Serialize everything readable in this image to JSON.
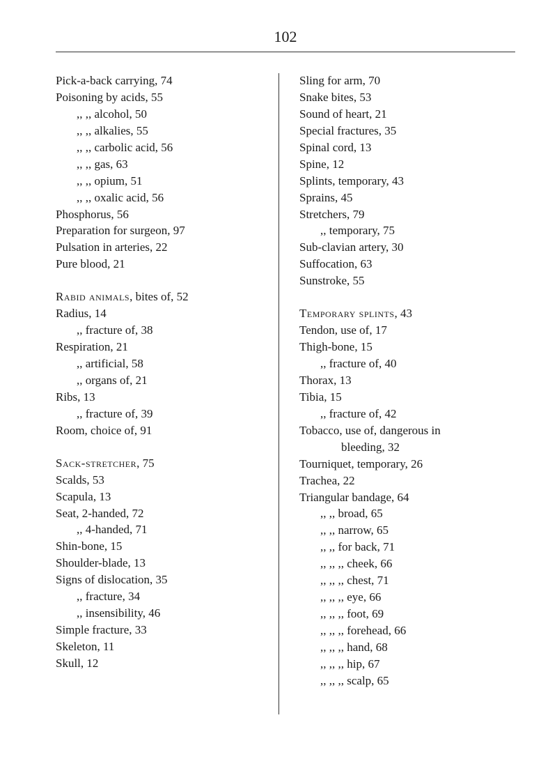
{
  "pageNumber": "102",
  "leftColumn": {
    "section1": [
      {
        "text": "Pick-a-back carrying, 74",
        "indent": 0
      },
      {
        "text": "Poisoning by acids, 55",
        "indent": 0
      },
      {
        "text": ",,        ,, alcohol, 50",
        "indent": 1
      },
      {
        "text": ",,        ,, alkalies, 55",
        "indent": 1
      },
      {
        "text": ",,        ,, carbolic acid, 56",
        "indent": 1
      },
      {
        "text": ",,        ,, gas, 63",
        "indent": 1
      },
      {
        "text": ",,        ,, opium, 51",
        "indent": 1
      },
      {
        "text": ",,        ,, oxalic acid, 56",
        "indent": 1
      },
      {
        "text": "Phosphorus, 56",
        "indent": 0
      },
      {
        "text": "Preparation for surgeon, 97",
        "indent": 0
      },
      {
        "text": "Pulsation in arteries, 22",
        "indent": 0
      },
      {
        "text": "Pure blood, 21",
        "indent": 0
      }
    ],
    "section2": [
      {
        "text": "Rabid animals, bites of, 52",
        "indent": 0,
        "caps": true,
        "firstWord": "Rabid animals"
      },
      {
        "text": "Radius, 14",
        "indent": 0
      },
      {
        "text": ",,   fracture of, 38",
        "indent": 1
      },
      {
        "text": "Respiration, 21",
        "indent": 0
      },
      {
        "text": ",,        artificial, 58",
        "indent": 1
      },
      {
        "text": ",,        organs of, 21",
        "indent": 1
      },
      {
        "text": "Ribs, 13",
        "indent": 0
      },
      {
        "text": ",,   fracture of, 39",
        "indent": 1
      },
      {
        "text": "Room, choice of, 91",
        "indent": 0
      }
    ],
    "section3": [
      {
        "text": "Sack-stretcher, 75",
        "indent": 0,
        "caps": true,
        "firstWord": "Sack-stretcher"
      },
      {
        "text": "Scalds, 53",
        "indent": 0
      },
      {
        "text": "Scapula, 13",
        "indent": 0
      },
      {
        "text": "Seat, 2-handed, 72",
        "indent": 0
      },
      {
        "text": ",,    4-handed, 71",
        "indent": 1
      },
      {
        "text": "Shin-bone, 15",
        "indent": 0
      },
      {
        "text": "Shoulder-blade, 13",
        "indent": 0
      },
      {
        "text": "Signs of dislocation, 35",
        "indent": 0
      },
      {
        "text": ",,    fracture, 34",
        "indent": 1
      },
      {
        "text": ",,    insensibility, 46",
        "indent": 1
      },
      {
        "text": "Simple fracture, 33",
        "indent": 0
      },
      {
        "text": "Skeleton, 11",
        "indent": 0
      },
      {
        "text": "Skull, 12",
        "indent": 0
      }
    ]
  },
  "rightColumn": {
    "section1": [
      {
        "text": "Sling for arm, 70",
        "indent": 0
      },
      {
        "text": "Snake bites, 53",
        "indent": 0
      },
      {
        "text": "Sound of heart, 21",
        "indent": 0
      },
      {
        "text": "Special fractures, 35",
        "indent": 0
      },
      {
        "text": "Spinal cord, 13",
        "indent": 0
      },
      {
        "text": "Spine, 12",
        "indent": 0
      },
      {
        "text": "Splints, temporary, 43",
        "indent": 0
      },
      {
        "text": "Sprains, 45",
        "indent": 0
      },
      {
        "text": "Stretchers, 79",
        "indent": 0
      },
      {
        "text": ",,        temporary, 75",
        "indent": 1
      },
      {
        "text": "Sub-clavian artery, 30",
        "indent": 0
      },
      {
        "text": "Suffocation, 63",
        "indent": 0
      },
      {
        "text": "Sunstroke, 55",
        "indent": 0
      }
    ],
    "section2": [
      {
        "text": "Temporary splints, 43",
        "indent": 0,
        "caps": true,
        "firstWord": "Temporary splints"
      },
      {
        "text": "Tendon, use of, 17",
        "indent": 0
      },
      {
        "text": "Thigh-bone, 15",
        "indent": 0
      },
      {
        "text": ",,   fracture of, 40",
        "indent": 1
      },
      {
        "text": "Thorax, 13",
        "indent": 0
      },
      {
        "text": "Tibia, 15",
        "indent": 0
      },
      {
        "text": ",,   fracture of, 42",
        "indent": 1
      },
      {
        "text": "Tobacco, use of, dangerous in",
        "indent": 0
      },
      {
        "text": "bleeding, 32",
        "indent": 2
      },
      {
        "text": "Tourniquet, temporary, 26",
        "indent": 0
      },
      {
        "text": "Trachea, 22",
        "indent": 0
      },
      {
        "text": "Triangular bandage, 64",
        "indent": 0
      },
      {
        "text": ",,        ,,     broad, 65",
        "indent": 1
      },
      {
        "text": ",,        ,,     narrow, 65",
        "indent": 1
      },
      {
        "text": ",,        ,,  for back, 71",
        "indent": 1
      },
      {
        "text": ",,        ,,   ,,  cheek, 66",
        "indent": 1
      },
      {
        "text": ",,        ,,   ,,  chest, 71",
        "indent": 1
      },
      {
        "text": ",,        ,,   ,,  eye, 66",
        "indent": 1
      },
      {
        "text": ",,        ,,   ,,  foot, 69",
        "indent": 1
      },
      {
        "text": ",,        ,,   ,,  forehead, 66",
        "indent": 1
      },
      {
        "text": ",,        ,,   ,,  hand, 68",
        "indent": 1
      },
      {
        "text": ",,        ,,   ,,  hip, 67",
        "indent": 1
      },
      {
        "text": ",,        ,,   ,,  scalp, 65",
        "indent": 1
      }
    ]
  }
}
